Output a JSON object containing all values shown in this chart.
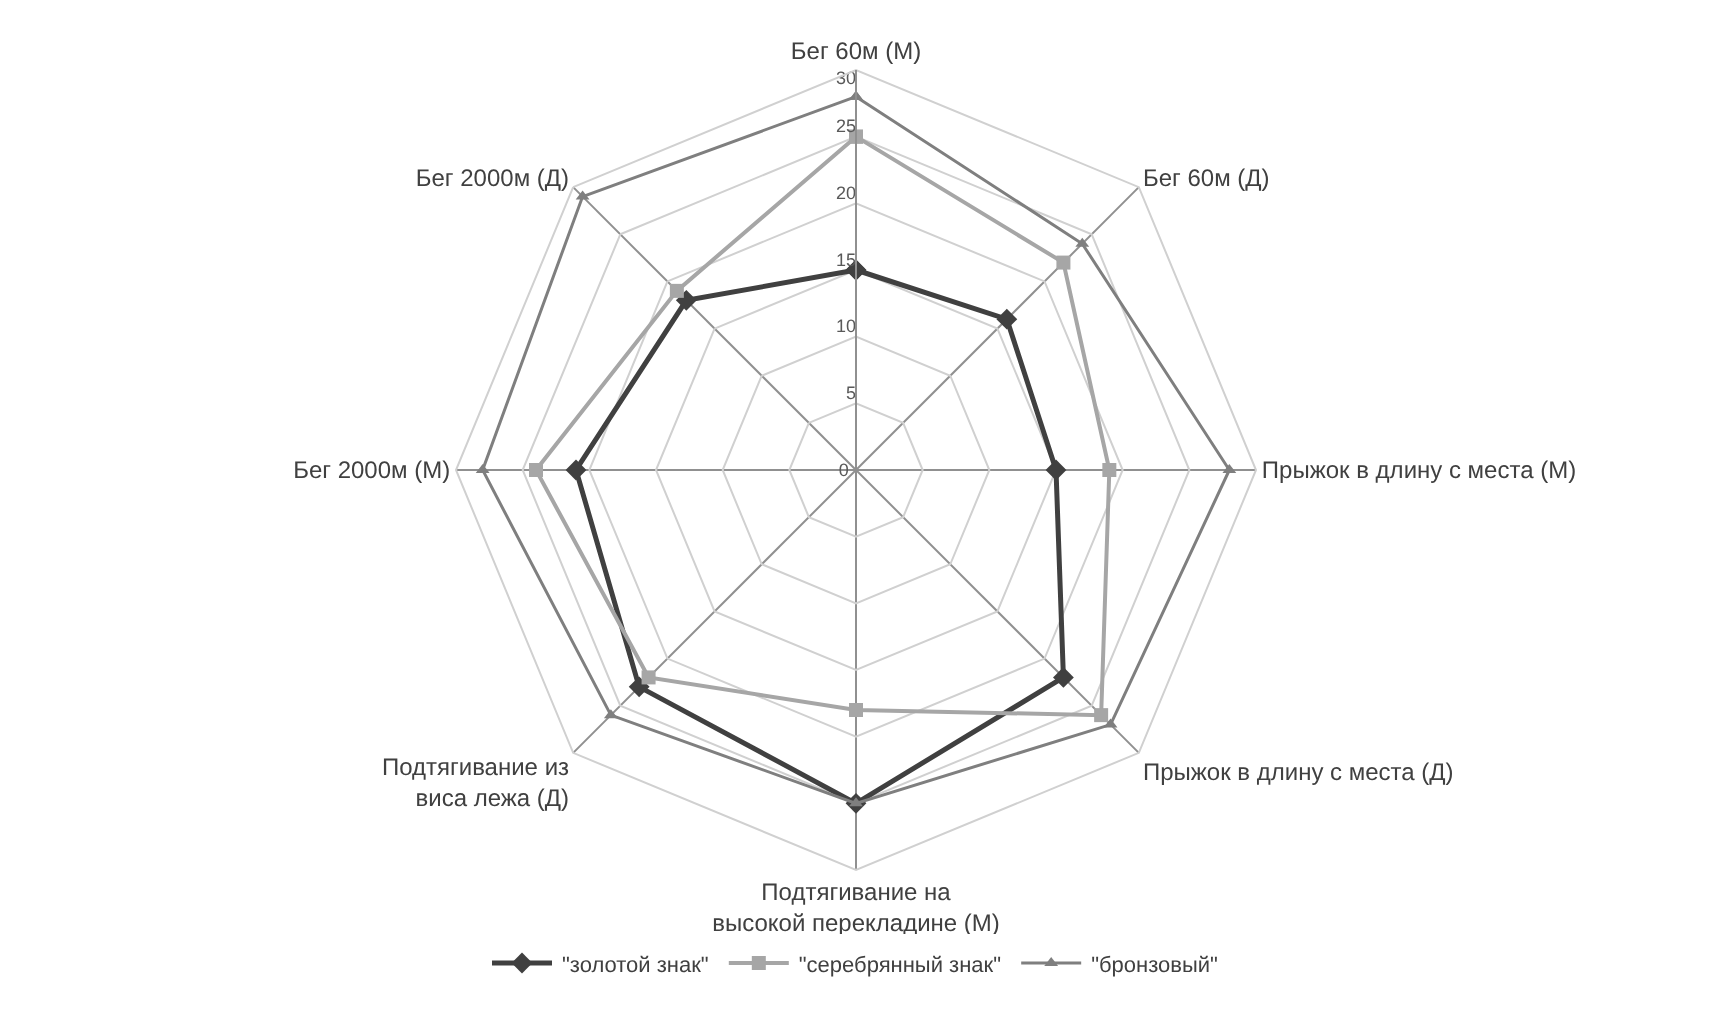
{
  "chart_data": {
    "type": "radar",
    "categories": [
      "Бег 60м (М)",
      "Бег 60м (Д)",
      "Прыжок в длину с места (М)",
      "Прыжок в длину с места (Д)",
      "Подтягивание на высокой перекладине (М)",
      "Подтягивание из виса лежа (Д)",
      "Бег 2000м (М)",
      "Бег 2000м (Д)"
    ],
    "series": [
      {
        "name": "\"золотой знак\"",
        "color": "#404040",
        "marker": "diamond",
        "values": [
          15,
          16,
          15,
          22,
          25,
          23,
          21,
          18
        ]
      },
      {
        "name": "\"серебрянный знак\"",
        "color": "#a6a6a6",
        "marker": "square",
        "values": [
          25,
          22,
          19,
          26,
          18,
          22,
          24,
          19
        ]
      },
      {
        "name": "\"бронзовый\"",
        "color": "#7f7f7f",
        "marker": "triangle",
        "values": [
          28,
          24,
          28,
          27,
          25,
          26,
          28,
          29
        ]
      }
    ],
    "ylim": [
      0,
      30
    ],
    "yticks": [
      0,
      5,
      10,
      15,
      20,
      25,
      30
    ],
    "grid": true,
    "legend": "bottom"
  }
}
